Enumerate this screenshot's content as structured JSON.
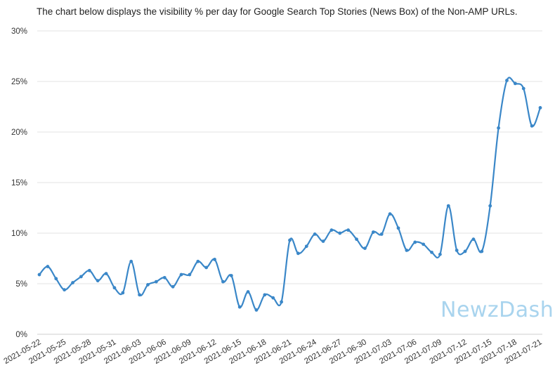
{
  "chart_data": {
    "type": "line",
    "title": "The chart below displays the visibility % per day for Google Search Top Stories (News Box) of the Non-AMP URLs.",
    "xlabel": "",
    "ylabel": "",
    "ylim": [
      0,
      30
    ],
    "y_ticks": [
      "0%",
      "5%",
      "10%",
      "15%",
      "20%",
      "25%",
      "30%"
    ],
    "grid": true,
    "legend": "none",
    "line_color": "#3a87c8",
    "x_tick_labels": [
      "2021-05-22",
      "2021-05-25",
      "2021-05-28",
      "2021-05-31",
      "2021-06-03",
      "2021-06-06",
      "2021-06-09",
      "2021-06-12",
      "2021-06-15",
      "2021-06-18",
      "2021-06-21",
      "2021-06-24",
      "2021-06-27",
      "2021-06-30",
      "2021-07-03",
      "2021-07-06",
      "2021-07-09",
      "2021-07-12",
      "2021-07-15",
      "2021-07-18",
      "2021-07-21"
    ],
    "x": [
      "2021-05-22",
      "2021-05-23",
      "2021-05-24",
      "2021-05-25",
      "2021-05-26",
      "2021-05-27",
      "2021-05-28",
      "2021-05-29",
      "2021-05-30",
      "2021-05-31",
      "2021-06-01",
      "2021-06-02",
      "2021-06-03",
      "2021-06-04",
      "2021-06-05",
      "2021-06-06",
      "2021-06-07",
      "2021-06-08",
      "2021-06-09",
      "2021-06-10",
      "2021-06-11",
      "2021-06-12",
      "2021-06-13",
      "2021-06-14",
      "2021-06-15",
      "2021-06-16",
      "2021-06-17",
      "2021-06-18",
      "2021-06-19",
      "2021-06-20",
      "2021-06-21",
      "2021-06-22",
      "2021-06-23",
      "2021-06-24",
      "2021-06-25",
      "2021-06-26",
      "2021-06-27",
      "2021-06-28",
      "2021-06-29",
      "2021-06-30",
      "2021-07-01",
      "2021-07-02",
      "2021-07-03",
      "2021-07-04",
      "2021-07-05",
      "2021-07-06",
      "2021-07-07",
      "2021-07-08",
      "2021-07-09",
      "2021-07-10",
      "2021-07-11",
      "2021-07-12",
      "2021-07-13",
      "2021-07-14",
      "2021-07-15",
      "2021-07-16",
      "2021-07-17",
      "2021-07-18",
      "2021-07-19",
      "2021-07-20",
      "2021-07-21"
    ],
    "values": [
      5.9,
      6.7,
      5.5,
      4.4,
      5.1,
      5.7,
      6.3,
      5.3,
      6.0,
      4.6,
      4.1,
      7.2,
      3.9,
      4.9,
      5.2,
      5.6,
      4.7,
      5.9,
      5.9,
      7.2,
      6.6,
      7.4,
      5.2,
      5.8,
      2.7,
      4.2,
      2.4,
      3.9,
      3.6,
      3.2,
      9.3,
      8.0,
      8.7,
      9.9,
      9.2,
      10.3,
      10.0,
      10.3,
      9.4,
      8.5,
      10.1,
      9.9,
      11.9,
      10.5,
      8.3,
      9.1,
      8.9,
      8.1,
      7.9,
      12.7,
      8.3,
      8.2,
      9.4,
      8.2,
      12.7,
      20.4,
      25.1,
      24.8,
      24.3,
      20.6,
      22.4
    ]
  },
  "watermark": "NewzDash"
}
